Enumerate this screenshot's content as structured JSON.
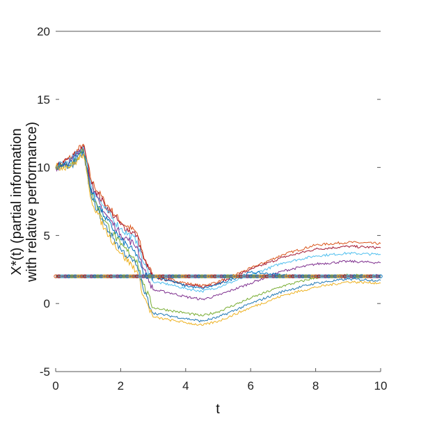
{
  "chart_data": {
    "type": "line",
    "xlabel": "t",
    "ylabel_line1": "X*(t) (partial information",
    "ylabel_line2": "with relative performance)",
    "xlim": [
      0,
      10
    ],
    "ylim": [
      -5,
      20
    ],
    "xticks": [
      0,
      2,
      4,
      6,
      8,
      10
    ],
    "yticks": [
      -5,
      0,
      5,
      10,
      15,
      20
    ],
    "xtick_labels": [
      "0",
      "2",
      "4",
      "6",
      "8",
      "10"
    ],
    "ytick_labels": [
      "-5",
      "0",
      "5",
      "10",
      "15",
      "20"
    ],
    "grid": false,
    "baseline": {
      "y": 2,
      "color": "#7a7a7a"
    },
    "series": [
      {
        "color": "#d95319",
        "x": [
          0,
          0.5,
          0.85,
          1.1,
          1.5,
          2.0,
          2.5,
          2.7,
          3.0,
          3.5,
          4.0,
          4.5,
          5.0,
          6.0,
          7.0,
          8.0,
          9.0,
          10.0
        ],
        "y": [
          10,
          10.8,
          11.7,
          9.0,
          7.5,
          6.0,
          5.2,
          3.5,
          2.0,
          1.8,
          1.5,
          1.3,
          1.6,
          2.6,
          3.6,
          4.3,
          4.5,
          4.4
        ]
      },
      {
        "color": "#a2142f",
        "x": [
          0,
          0.5,
          0.85,
          1.1,
          1.5,
          2.0,
          2.5,
          2.7,
          3.0,
          3.5,
          4.0,
          4.5,
          5.0,
          6.0,
          7.0,
          8.0,
          9.0,
          10.0
        ],
        "y": [
          10,
          10.7,
          11.6,
          8.8,
          7.3,
          5.8,
          5.0,
          3.3,
          1.9,
          1.7,
          1.4,
          1.2,
          1.5,
          2.5,
          3.4,
          4.0,
          4.2,
          4.1
        ]
      },
      {
        "color": "#4dbeee",
        "x": [
          0,
          0.5,
          0.85,
          1.1,
          1.5,
          2.0,
          2.5,
          2.7,
          3.0,
          3.5,
          4.0,
          4.5,
          5.0,
          6.0,
          7.0,
          8.0,
          9.0,
          10.0
        ],
        "y": [
          10,
          10.6,
          11.5,
          8.6,
          7.0,
          5.5,
          4.6,
          3.0,
          1.6,
          1.4,
          1.1,
          0.9,
          1.2,
          2.1,
          3.0,
          3.5,
          3.7,
          3.6
        ]
      },
      {
        "color": "#7e2f8e",
        "x": [
          0,
          0.5,
          0.85,
          1.1,
          1.5,
          2.0,
          2.5,
          2.7,
          3.0,
          3.5,
          4.0,
          4.5,
          5.0,
          6.0,
          7.0,
          8.0,
          9.0,
          10.0
        ],
        "y": [
          10,
          10.5,
          11.4,
          8.4,
          6.7,
          5.1,
          4.2,
          2.6,
          1.0,
          0.8,
          0.5,
          0.3,
          0.6,
          1.5,
          2.4,
          2.9,
          3.1,
          3.0
        ]
      },
      {
        "color": "#0072bd",
        "x": [
          0,
          0.5,
          0.85,
          1.1,
          1.5,
          2.0,
          2.5,
          2.7,
          3.0,
          3.5,
          4.0,
          4.5,
          5.0,
          6.0,
          7.0,
          8.0,
          9.0,
          10.0
        ],
        "y": [
          10,
          10.4,
          11.3,
          8.2,
          6.4,
          4.7,
          3.6,
          2.1,
          2.0,
          1.7,
          1.3,
          1.1,
          1.4,
          2.3,
          2.1,
          2.0,
          2.0,
          2.1
        ]
      },
      {
        "color": "#77ac30",
        "x": [
          0,
          0.5,
          0.85,
          1.1,
          1.5,
          2.0,
          2.5,
          2.7,
          3.0,
          3.5,
          4.0,
          4.5,
          5.0,
          6.0,
          7.0,
          8.0,
          9.0,
          10.0
        ],
        "y": [
          10,
          10.3,
          11.2,
          8.0,
          6.1,
          4.3,
          3.2,
          1.4,
          -0.3,
          -0.5,
          -0.7,
          -0.9,
          -0.6,
          0.4,
          1.3,
          1.9,
          2.1,
          2.0
        ]
      },
      {
        "color": "#1f77b4",
        "x": [
          0,
          0.5,
          0.85,
          1.1,
          1.5,
          2.0,
          2.5,
          2.7,
          3.0,
          3.5,
          4.0,
          4.5,
          5.0,
          6.0,
          7.0,
          8.0,
          9.0,
          10.0
        ],
        "y": [
          10,
          10.2,
          11.1,
          7.8,
          5.8,
          4.0,
          2.8,
          1.0,
          -0.7,
          -0.9,
          -1.1,
          -1.3,
          -1.0,
          0.0,
          0.9,
          1.5,
          1.8,
          1.7
        ]
      },
      {
        "color": "#edb120",
        "x": [
          0,
          0.5,
          0.85,
          1.1,
          1.5,
          2.0,
          2.5,
          2.7,
          3.0,
          3.5,
          4.0,
          4.5,
          5.0,
          6.0,
          7.0,
          8.0,
          9.0,
          10.0
        ],
        "y": [
          10,
          10.1,
          11.0,
          7.6,
          5.5,
          3.7,
          2.4,
          0.6,
          -1.0,
          -1.2,
          -1.4,
          -1.6,
          -1.3,
          -0.3,
          0.6,
          1.2,
          1.6,
          1.5
        ]
      }
    ]
  }
}
